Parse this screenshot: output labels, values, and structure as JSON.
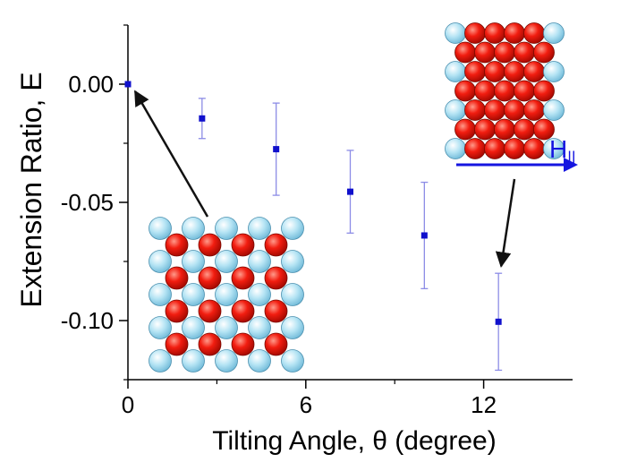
{
  "chart_data": {
    "type": "scatter",
    "xlabel": "Tilting Angle,  θ  (degree)",
    "ylabel": "Extension Ratio, E",
    "xlim": [
      0,
      15
    ],
    "ylim": [
      -0.125,
      0.025
    ],
    "x_ticks": [
      {
        "value": 0,
        "label": "0"
      },
      {
        "value": 6,
        "label": "6"
      },
      {
        "value": 12,
        "label": "12"
      }
    ],
    "x_minor_ticks": [
      3,
      9
    ],
    "y_ticks": [
      {
        "value": 0.0,
        "label": "0.00"
      },
      {
        "value": -0.05,
        "label": "-0.05"
      },
      {
        "value": -0.1,
        "label": "-0.10"
      }
    ],
    "y_minor_ticks": [
      0.025,
      -0.025,
      -0.075,
      -0.125
    ],
    "grid": false,
    "legend": "none",
    "series": [
      {
        "color": "#1010cc",
        "errorbar_color": "#8c8ce6",
        "points": [
          {
            "x": 0.0,
            "y": 0.0,
            "err": 0.0
          },
          {
            "x": 2.5,
            "y": -0.0145,
            "err": 0.0085
          },
          {
            "x": 5.0,
            "y": -0.0275,
            "err": 0.0195
          },
          {
            "x": 7.5,
            "y": -0.0455,
            "err": 0.0175
          },
          {
            "x": 10.0,
            "y": -0.064,
            "err": 0.0225
          },
          {
            "x": 12.5,
            "y": -0.1005,
            "err": 0.0205
          }
        ]
      }
    ],
    "annotations": [
      {
        "type": "lattice-inset",
        "description": "square lattice of alternating red and light-blue spheres at θ = 0",
        "points_to": {
          "x": 0.0,
          "y": 0.0
        }
      },
      {
        "type": "lattice-inset",
        "description": "tilted lattice with in-plane field arrow",
        "points_to": {
          "x": 12.5,
          "y": -0.1005
        },
        "field_label": "H",
        "field_subscript": "||",
        "field_color": "#1515e0"
      }
    ]
  }
}
